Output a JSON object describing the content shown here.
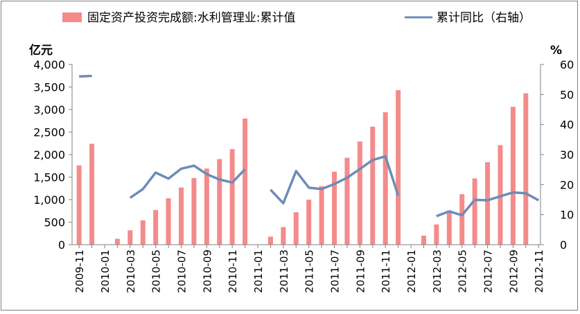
{
  "chart_data": {
    "type": "bar",
    "legend_position": "top",
    "grid": false,
    "y_left": {
      "label": "亿元",
      "ylim": [
        0,
        4000
      ],
      "ticks": [
        "0",
        "500",
        "1,000",
        "1,500",
        "2,000",
        "2,500",
        "3,000",
        "3,500",
        "4,000"
      ]
    },
    "y_right": {
      "label": "%",
      "ylim": [
        0,
        60
      ],
      "ticks": [
        "0",
        "10",
        "20",
        "30",
        "40",
        "50",
        "60"
      ]
    },
    "x_tick_labels": [
      "2009-11",
      "2010-01",
      "2010-03",
      "2010-05",
      "2010-07",
      "2010-09",
      "2010-11",
      "2011-01",
      "2011-03",
      "2011-05",
      "2011-07",
      "2011-09",
      "2011-11",
      "2012-01",
      "2012-03",
      "2012-05",
      "2012-07",
      "2012-09",
      "2012-11"
    ],
    "categories": [
      "2009-11",
      "2009-12",
      "2010-01",
      "2010-02",
      "2010-03",
      "2010-04",
      "2010-05",
      "2010-06",
      "2010-07",
      "2010-08",
      "2010-09",
      "2010-10",
      "2010-11",
      "2010-12",
      "2011-01",
      "2011-02",
      "2011-03",
      "2011-04",
      "2011-05",
      "2011-06",
      "2011-07",
      "2011-08",
      "2011-09",
      "2011-10",
      "2011-11",
      "2011-12",
      "2012-01",
      "2012-02",
      "2012-03",
      "2012-04",
      "2012-05",
      "2012-06",
      "2012-07",
      "2012-08",
      "2012-09",
      "2012-10",
      "2012-11"
    ],
    "series": [
      {
        "name": "固定资产投资完成额:水利管理业:累计值",
        "kind": "bar",
        "axis": "left",
        "color": "#f48b8b",
        "values": [
          1760,
          2240,
          null,
          130,
          320,
          540,
          770,
          1030,
          1270,
          1480,
          1690,
          1900,
          2120,
          2800,
          null,
          180,
          390,
          720,
          1000,
          1300,
          1620,
          1930,
          2290,
          2620,
          2940,
          3430,
          null,
          200,
          450,
          760,
          1120,
          1470,
          1830,
          2210,
          3060,
          3360,
          null
        ]
      },
      {
        "name": "累计同比（右轴）",
        "kind": "line",
        "axis": "right",
        "color": "#6d8cb6",
        "values": [
          56,
          56.2,
          null,
          null,
          15.6,
          18.5,
          24,
          22,
          25.3,
          26.3,
          23.5,
          21.7,
          20.7,
          25.1,
          null,
          18.3,
          13.8,
          24.5,
          19,
          18.5,
          20.2,
          22.3,
          25.2,
          28.2,
          29.4,
          16.4,
          null,
          null,
          9.5,
          11.1,
          9.8,
          14.9,
          14.8,
          16.1,
          17.4,
          17.1,
          14.8
        ]
      }
    ]
  }
}
